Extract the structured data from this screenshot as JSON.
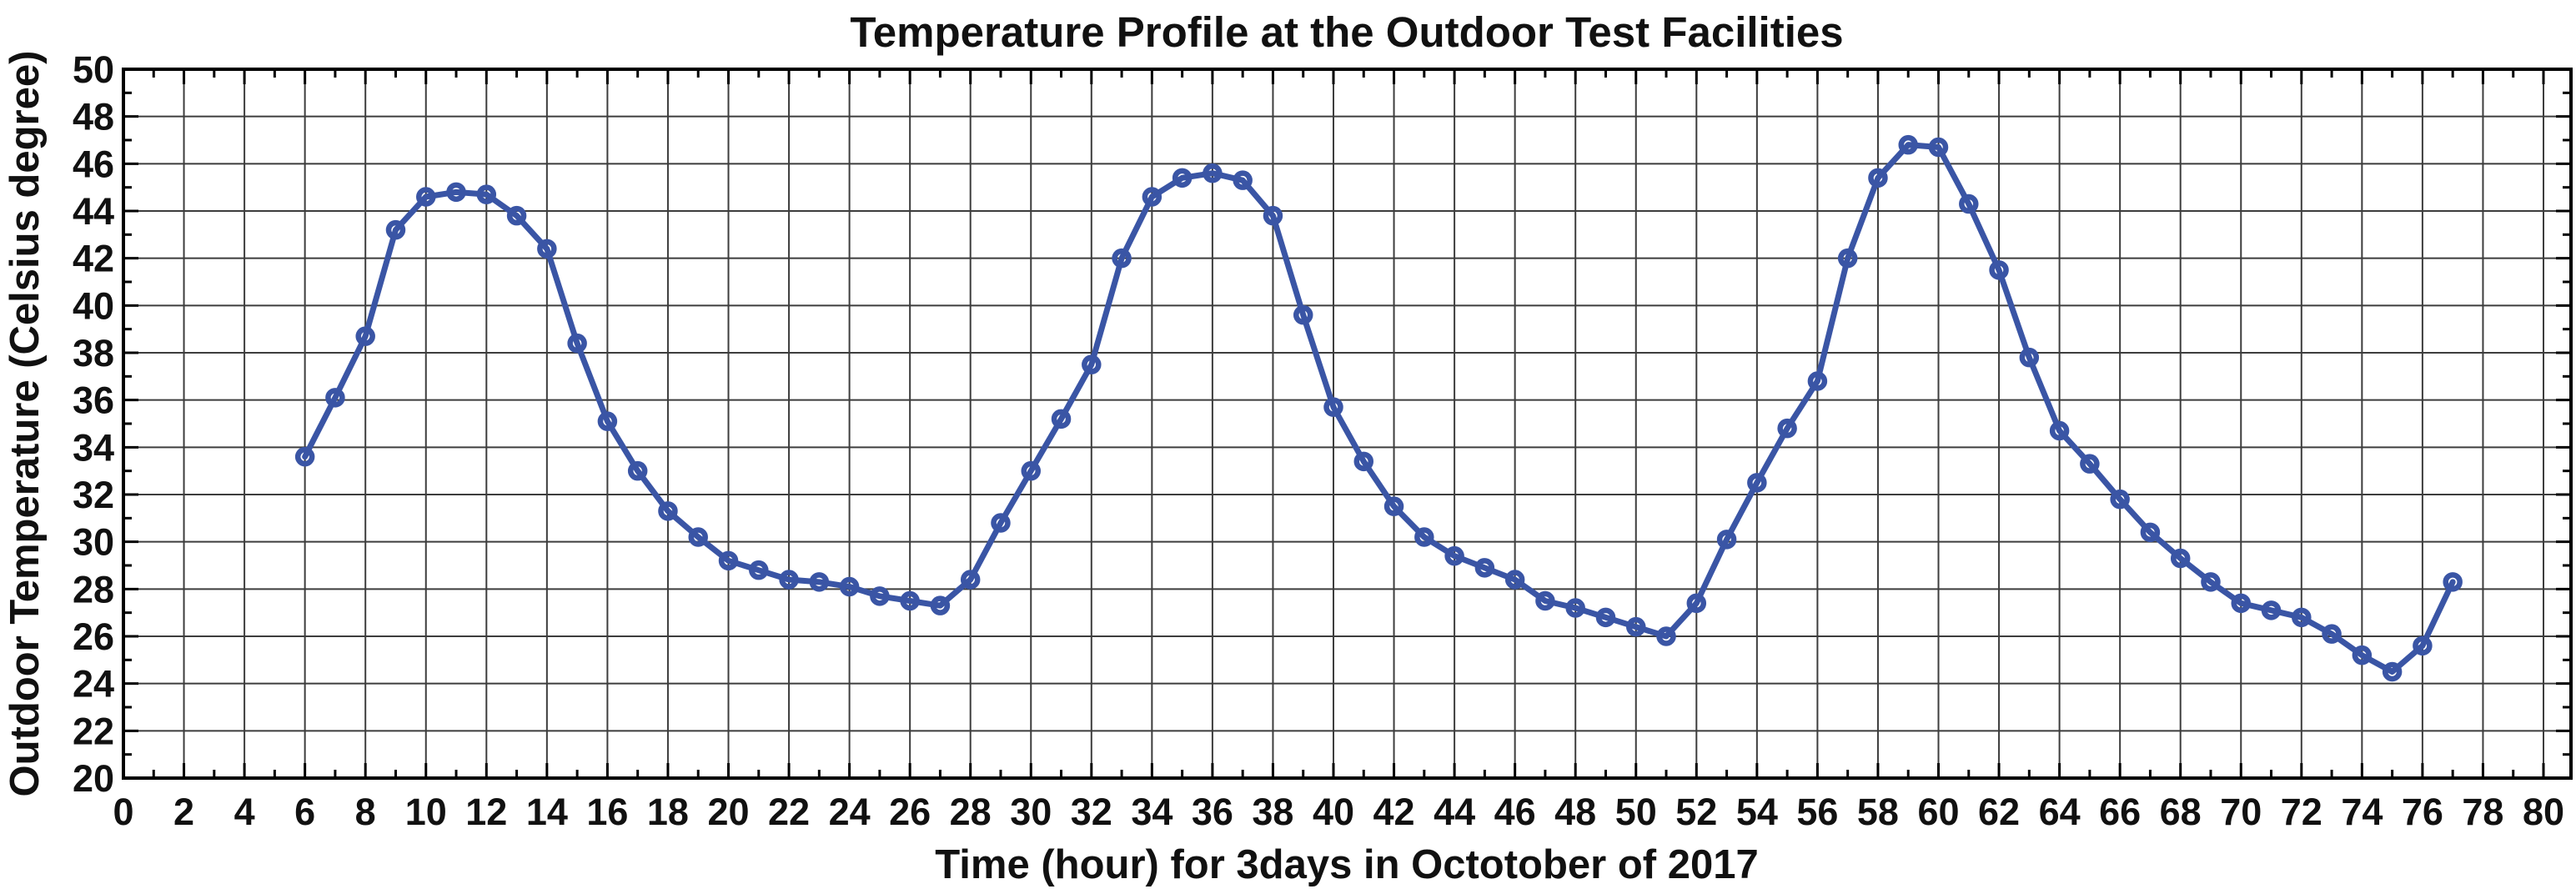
{
  "figure": {
    "title": "Temperature Profile at the Outdoor Test Facilities"
  },
  "colors": {
    "line": "#3a55a5",
    "grid": "#3d3d3d",
    "axis": "#000000",
    "text": "#111111",
    "background": "#ffffff"
  },
  "chart_data": {
    "type": "line",
    "title": "Temperature Profile at the Outdoor Test Facilities",
    "xlabel": "Time (hour) for 3days in Octotober of 2017",
    "ylabel": "Outdoor Temperature (Celsius degree)",
    "xlim": [
      0,
      80
    ],
    "ylim": [
      20,
      50
    ],
    "x_tick_step": 2,
    "y_tick_step": 2,
    "x_minor_tick_step": 1,
    "y_minor_tick_step": 1,
    "grid": true,
    "legend": "none",
    "marker": "open-circle",
    "series": [
      {
        "name": "outdoor-temperature",
        "x": [
          6,
          7,
          8,
          9,
          10,
          11,
          12,
          13,
          14,
          15,
          16,
          17,
          18,
          19,
          20,
          21,
          22,
          23,
          24,
          25,
          26,
          27,
          28,
          29,
          30,
          31,
          32,
          33,
          34,
          35,
          36,
          37,
          38,
          39,
          40,
          41,
          42,
          43,
          44,
          45,
          46,
          47,
          48,
          49,
          50,
          51,
          52,
          53,
          54,
          55,
          56,
          57,
          58,
          59,
          60,
          61,
          62,
          63,
          64,
          65,
          66,
          67,
          68,
          69,
          70,
          71,
          72,
          73,
          74,
          75,
          76,
          77
        ],
        "y": [
          33.6,
          36.1,
          38.7,
          43.2,
          44.6,
          44.8,
          44.7,
          43.8,
          42.4,
          38.4,
          35.1,
          33.0,
          31.3,
          30.2,
          29.2,
          28.8,
          28.4,
          28.3,
          28.1,
          27.7,
          27.5,
          27.3,
          28.4,
          30.8,
          33.0,
          35.2,
          37.5,
          42.0,
          44.6,
          45.4,
          45.6,
          45.3,
          43.8,
          39.6,
          35.7,
          33.4,
          31.5,
          30.2,
          29.4,
          28.9,
          28.4,
          27.5,
          27.2,
          26.8,
          26.4,
          26.0,
          27.4,
          30.1,
          32.5,
          34.8,
          36.8,
          42.0,
          45.4,
          46.8,
          46.7,
          44.3,
          41.5,
          37.8,
          34.7,
          33.3,
          31.8,
          30.4,
          29.3,
          28.3,
          27.4,
          27.1,
          26.8,
          26.1,
          25.2,
          24.5,
          25.6,
          28.3
        ]
      }
    ]
  }
}
